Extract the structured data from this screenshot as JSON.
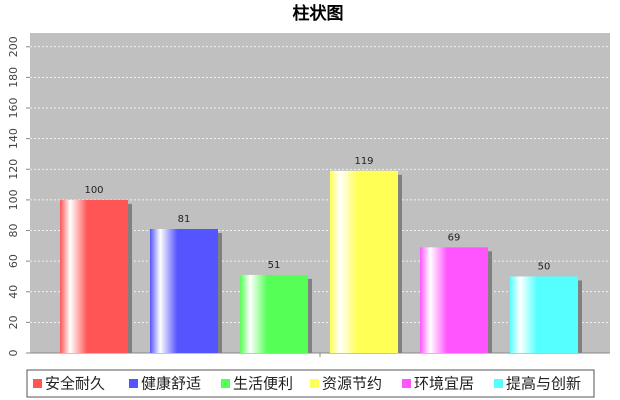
{
  "chart_data": {
    "type": "bar",
    "title": "柱状图",
    "series": [
      {
        "name": "安全耐久",
        "color": "#ff5555",
        "values": [
          100
        ]
      },
      {
        "name": "健康舒适",
        "color": "#5555ff",
        "values": [
          81
        ]
      },
      {
        "name": "生活便利",
        "color": "#55ff55",
        "values": [
          51
        ]
      },
      {
        "name": "资源节约",
        "color": "#ffff55",
        "values": [
          119
        ]
      },
      {
        "name": "环境宜居",
        "color": "#ff55ff",
        "values": [
          69
        ]
      },
      {
        "name": "提高与创新",
        "color": "#55ffff",
        "values": [
          50
        ]
      }
    ],
    "ylim": [
      0,
      209
    ],
    "yticks": [
      0,
      20,
      40,
      60,
      80,
      100,
      120,
      140,
      160,
      180,
      200
    ],
    "grid": true
  }
}
